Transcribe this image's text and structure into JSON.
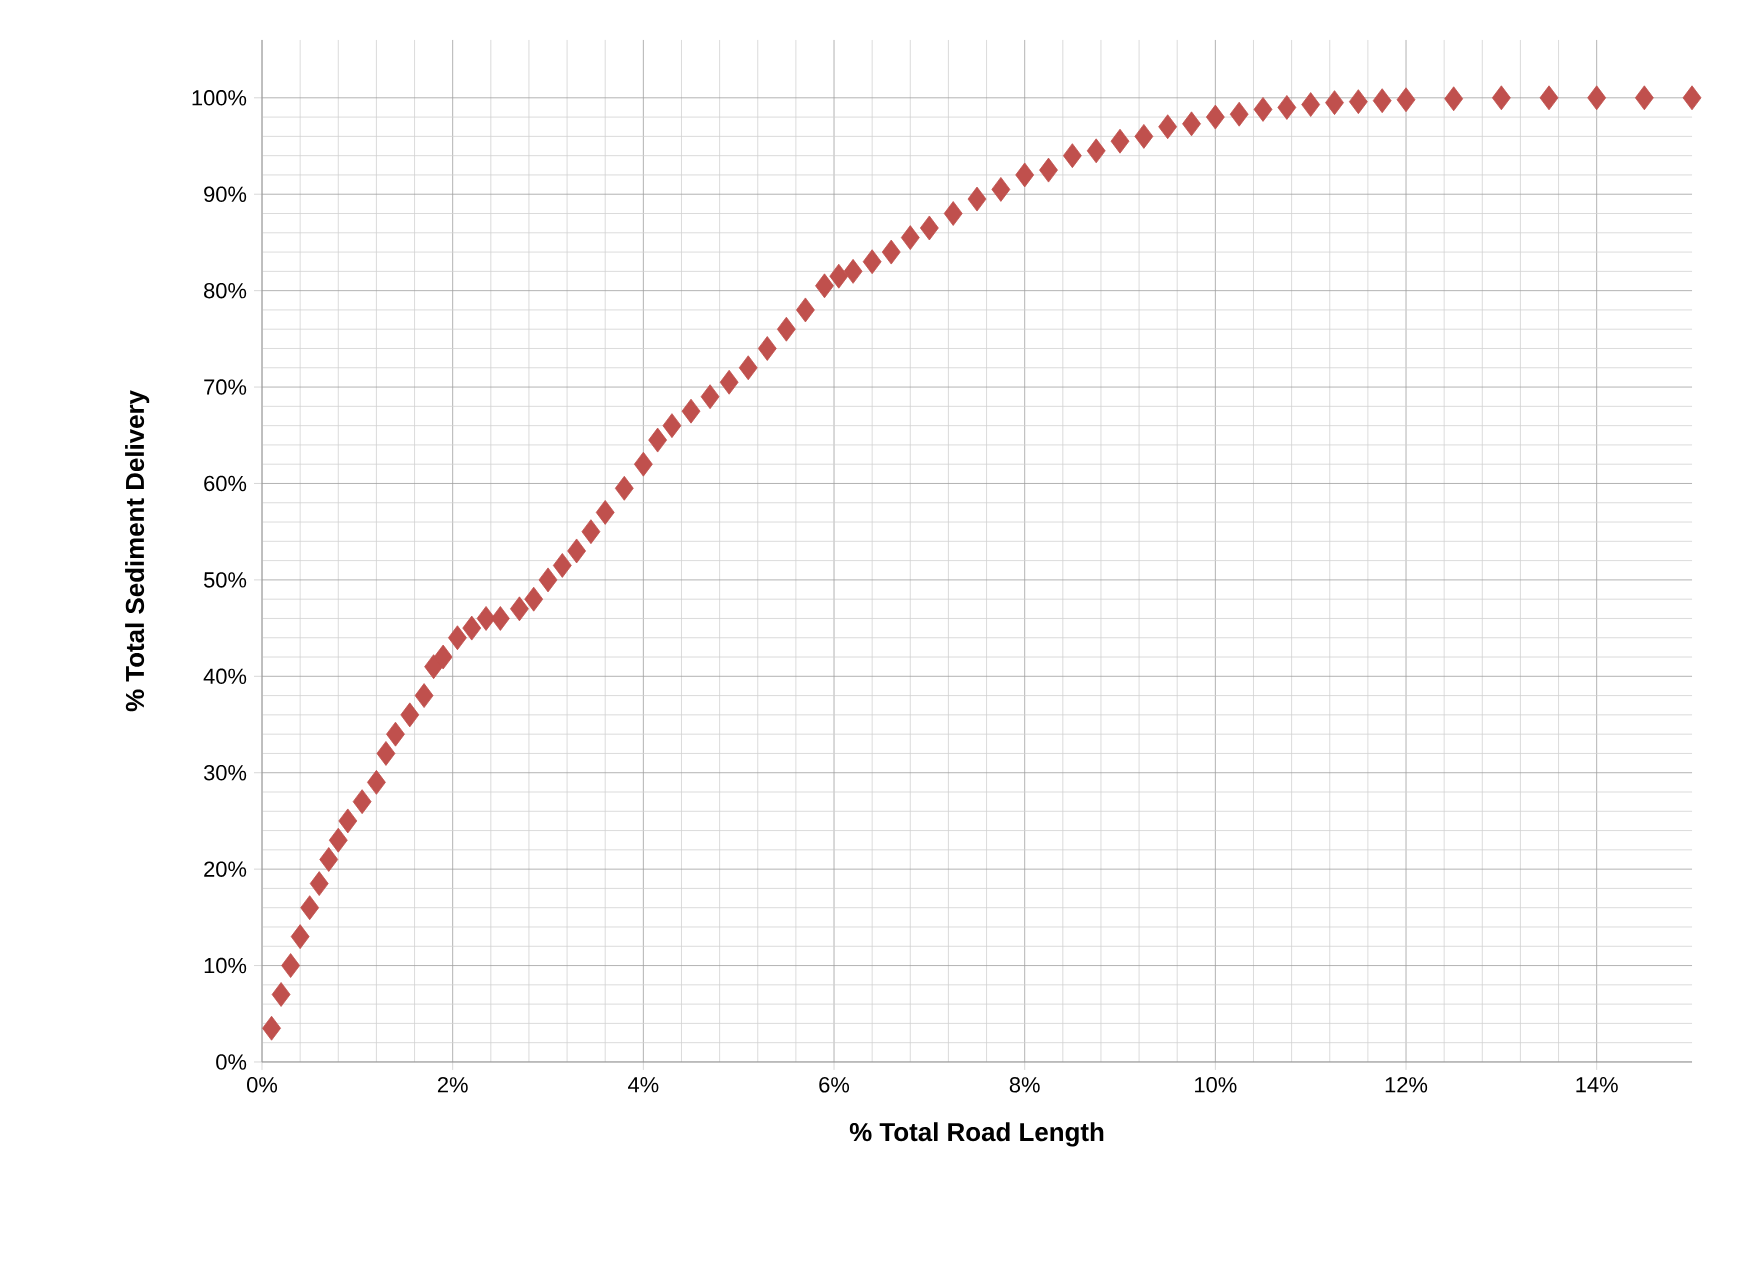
{
  "chart_data": {
    "type": "scatter",
    "xlabel": "% Total Road Length",
    "ylabel": "% Total Sediment Delivery",
    "marker": "diamond",
    "grid": true,
    "xlim": [
      0,
      15
    ],
    "ylim": [
      0,
      106
    ],
    "xticks": [
      {
        "value": 0,
        "label": "0%"
      },
      {
        "value": 2,
        "label": "2%"
      },
      {
        "value": 4,
        "label": "4%"
      },
      {
        "value": 6,
        "label": "6%"
      },
      {
        "value": 8,
        "label": "8%"
      },
      {
        "value": 10,
        "label": "10%"
      },
      {
        "value": 12,
        "label": "12%"
      },
      {
        "value": 14,
        "label": "14%"
      }
    ],
    "yticks": [
      {
        "value": 0,
        "label": "0%"
      },
      {
        "value": 10,
        "label": "10%"
      },
      {
        "value": 20,
        "label": "20%"
      },
      {
        "value": 30,
        "label": "30%"
      },
      {
        "value": 40,
        "label": "40%"
      },
      {
        "value": 50,
        "label": "50%"
      },
      {
        "value": 60,
        "label": "60%"
      },
      {
        "value": 70,
        "label": "70%"
      },
      {
        "value": 80,
        "label": "80%"
      },
      {
        "value": 90,
        "label": "90%"
      },
      {
        "value": 100,
        "label": "100%"
      }
    ],
    "series": [
      {
        "color": "#c0504d",
        "x": [
          0.1,
          0.2,
          0.3,
          0.4,
          0.5,
          0.6,
          0.7,
          0.8,
          0.9,
          1.05,
          1.2,
          1.3,
          1.4,
          1.55,
          1.7,
          1.8,
          1.9,
          2.05,
          2.2,
          2.35,
          2.5,
          2.7,
          2.85,
          3.0,
          3.15,
          3.3,
          3.45,
          3.6,
          3.8,
          4.0,
          4.15,
          4.3,
          4.5,
          4.7,
          4.9,
          5.1,
          5.3,
          5.5,
          5.7,
          5.9,
          6.05,
          6.2,
          6.4,
          6.6,
          6.8,
          7.0,
          7.25,
          7.5,
          7.75,
          8.0,
          8.25,
          8.5,
          8.75,
          9.0,
          9.25,
          9.5,
          9.75,
          10.0,
          10.25,
          10.5,
          10.75,
          11.0,
          11.25,
          11.5,
          11.75,
          12.0,
          12.5,
          13.0,
          13.5,
          14.0,
          14.5,
          15.0
        ],
        "values": [
          3.5,
          7,
          10,
          13,
          16,
          18.5,
          21,
          23,
          25,
          27,
          29,
          32,
          34,
          36,
          38,
          41,
          42,
          44,
          45,
          46,
          46,
          47,
          48,
          50,
          51.5,
          53,
          55,
          57,
          59.5,
          62,
          64.5,
          66,
          67.5,
          69,
          70.5,
          72,
          74,
          76,
          78,
          80.5,
          81.5,
          82,
          83,
          84,
          85.5,
          86.5,
          88,
          89.5,
          90.5,
          92,
          92.5,
          94,
          94.5,
          95.5,
          96,
          97,
          97.3,
          98,
          98.3,
          98.8,
          99,
          99.3,
          99.5,
          99.6,
          99.7,
          99.8,
          99.9,
          100,
          100,
          100,
          100,
          100
        ]
      }
    ]
  }
}
